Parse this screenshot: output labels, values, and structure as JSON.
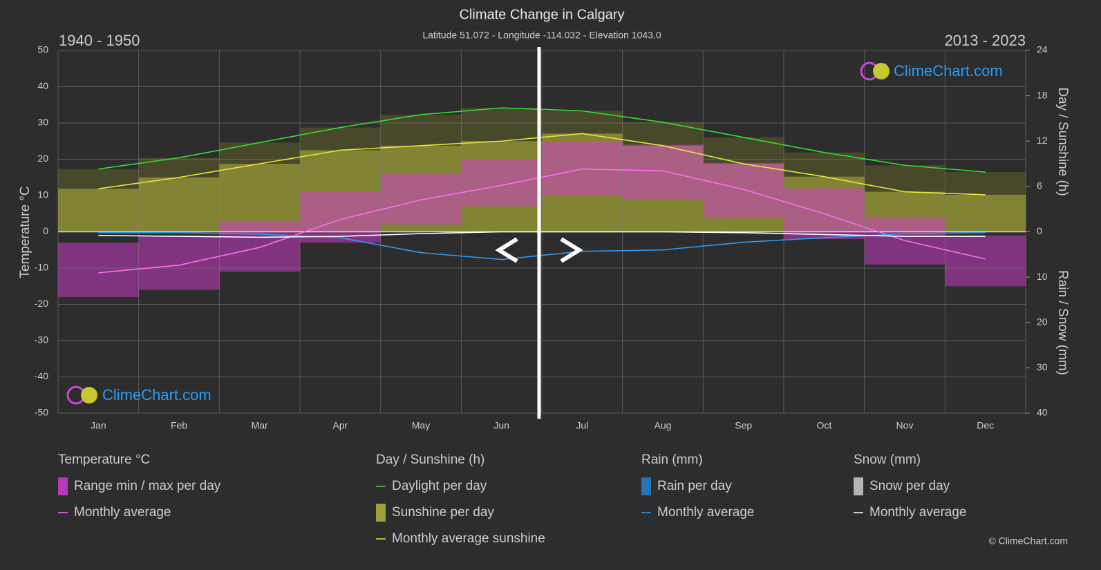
{
  "chart_data": {
    "type": "climate",
    "title": "Climate Change in Calgary",
    "subtitle": "Latitude 51.072 - Longitude -114.032 - Elevation 1043.0",
    "period_left": "1940 - 1950",
    "period_right": "2013 - 2023",
    "watermark": "ClimeChart.com",
    "copyright": "© ClimeChart.com",
    "categories": [
      "Jan",
      "Feb",
      "Mar",
      "Apr",
      "May",
      "Jun",
      "Jul",
      "Aug",
      "Sep",
      "Oct",
      "Nov",
      "Dec"
    ],
    "ylabel": "Temperature °C",
    "y2label": "Day / Sunshine (h)",
    "y3label": "Rain / Snow (mm)",
    "ylim": [
      -50,
      50
    ],
    "yticks": [
      -50,
      -40,
      -30,
      -20,
      -10,
      0,
      10,
      20,
      30,
      40,
      50
    ],
    "y2lim": [
      0,
      24
    ],
    "y2ticks": [
      0,
      6,
      12,
      18,
      24
    ],
    "y3lim": [
      0,
      40
    ],
    "y3ticks": [
      10,
      20,
      30,
      40
    ],
    "grid": true,
    "groups": [
      {
        "title": "Temperature °C",
        "items": [
          {
            "name": "Range min / max per day",
            "color": "#d43cd4",
            "min": [
              -18,
              -16,
              -11,
              -3,
              2,
              7,
              10,
              9,
              4,
              -2,
              -9,
              -15
            ],
            "max": [
              -3,
              -1,
              3,
              11,
              16,
              20,
              25,
              24,
              19,
              12,
              4,
              -1
            ]
          },
          {
            "name": "Monthly average",
            "color": "#ff6ef0",
            "axis": "y",
            "values": [
              -11.3,
              -9.2,
              -4.3,
              3.4,
              8.8,
              12.8,
              17.3,
              16.8,
              11.7,
              5.0,
              -2.4,
              -7.5
            ]
          }
        ]
      },
      {
        "title": "Day / Sunshine (h)",
        "items": [
          {
            "name": "Daylight per day",
            "color": "#33dd33",
            "axis": "y2",
            "values": [
              8.3,
              9.8,
              11.8,
              13.8,
              15.5,
              16.4,
              16.0,
              14.5,
              12.5,
              10.5,
              8.8,
              7.9
            ]
          },
          {
            "name": "Sunshine per day",
            "color": "#b4b43c"
          },
          {
            "name": "Monthly average sunshine",
            "color": "#e6e63c",
            "axis": "y2",
            "values": [
              5.7,
              7.2,
              9.0,
              10.8,
              11.4,
              12.0,
              13.0,
              11.4,
              9.0,
              7.3,
              5.3,
              4.9
            ]
          }
        ]
      },
      {
        "title": "Rain (mm)",
        "items": [
          {
            "name": "Rain per day",
            "color": "#2680d0"
          },
          {
            "name": "Monthly average",
            "color": "#3399ee",
            "axis": "y3",
            "values": [
              0.2,
              0.2,
              0.5,
              1.3,
              4.6,
              6.1,
              4.3,
              4.0,
              2.3,
              1.3,
              0.4,
              0.2
            ]
          }
        ]
      },
      {
        "title": "Snow (mm)",
        "items": [
          {
            "name": "Snow per day",
            "color": "#cccccc"
          },
          {
            "name": "Monthly average",
            "color": "#ffffff",
            "axis": "y3",
            "values": [
              0.8,
              1.0,
              1.2,
              1.0,
              0.4,
              0,
              0,
              0,
              0.2,
              0.6,
              1.0,
              1.0
            ]
          }
        ]
      }
    ]
  }
}
